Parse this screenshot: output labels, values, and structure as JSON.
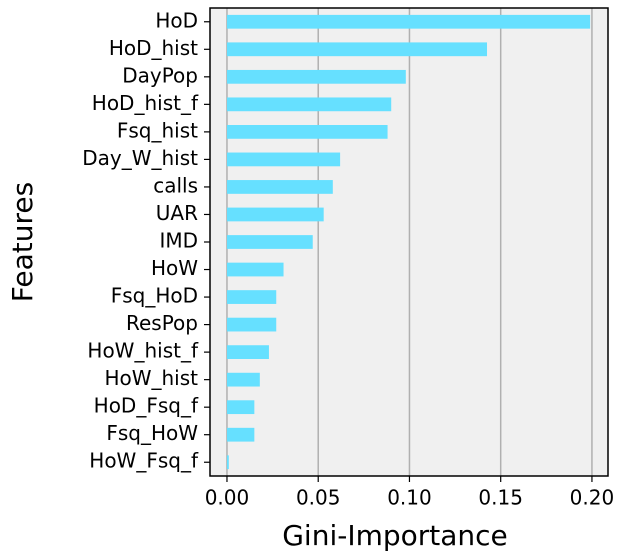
{
  "chart_data": {
    "type": "barh",
    "xlabel": "Gini-Importance",
    "ylabel": "Features",
    "categories": [
      "HoD",
      "HoD_hist",
      "DayPop",
      "HoD_hist_f",
      "Fsq_hist",
      "Day_W_hist",
      "calls",
      "UAR",
      "IMD",
      "HoW",
      "Fsq_HoD",
      "ResPop",
      "HoW_hist_f",
      "HoW_hist",
      "HoD_Fsq_f",
      "Fsq_HoW",
      "HoW_Fsq_f"
    ],
    "values": [
      0.199,
      0.1425,
      0.098,
      0.09,
      0.088,
      0.062,
      0.058,
      0.053,
      0.047,
      0.031,
      0.027,
      0.027,
      0.023,
      0.018,
      0.015,
      0.015,
      0.001
    ],
    "color": "#66e0ff",
    "xlim": [
      -0.0093,
      0.2088
    ],
    "xticks": [
      {
        "value": 0,
        "label": "0.00"
      },
      {
        "value": 0.05,
        "label": "0.05"
      },
      {
        "value": 0.1,
        "label": "0.10"
      },
      {
        "value": 0.15,
        "label": "0.15"
      },
      {
        "value": 0.2,
        "label": "0.20"
      }
    ],
    "grid": true
  }
}
